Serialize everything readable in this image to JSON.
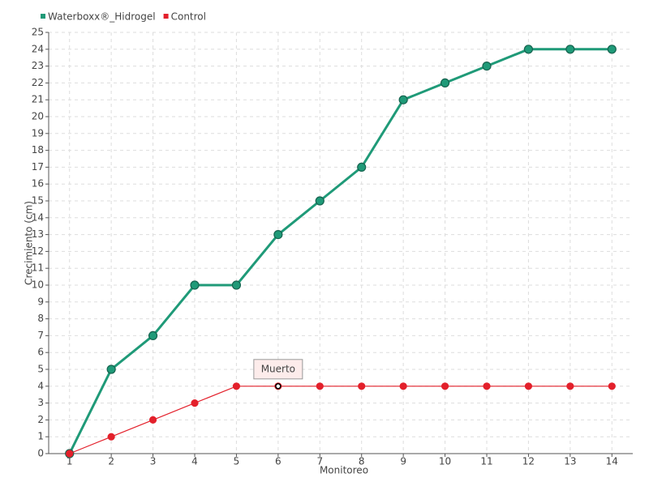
{
  "chart_data": {
    "type": "line",
    "x_label": "Monitoreo",
    "y_label": "Crecimiento (cm)",
    "categories": [
      "1",
      "2",
      "3",
      "4",
      "5",
      "6",
      "7",
      "8",
      "9",
      "10",
      "11",
      "12",
      "13",
      "14"
    ],
    "series": [
      {
        "name": "Waterboxx®_Hidrogel",
        "color": "#1f9a78",
        "values": [
          0,
          5,
          7,
          10,
          10,
          13,
          15,
          17,
          21,
          22,
          23,
          24,
          24,
          24
        ]
      },
      {
        "name": "Control",
        "color": "#e3202b",
        "values": [
          0,
          1,
          2,
          3,
          4,
          4,
          4,
          4,
          4,
          4,
          4,
          4,
          4,
          4
        ]
      }
    ],
    "ylim": [
      0,
      25
    ],
    "yticks": [
      0,
      1,
      2,
      3,
      4,
      5,
      6,
      7,
      8,
      9,
      10,
      11,
      12,
      13,
      14,
      15,
      16,
      17,
      18,
      19,
      20,
      21,
      22,
      23,
      24,
      25
    ],
    "grid": true,
    "legend": "top-left",
    "annotations": [
      {
        "text": "Muerto",
        "series": "Control",
        "x": "6"
      }
    ]
  }
}
